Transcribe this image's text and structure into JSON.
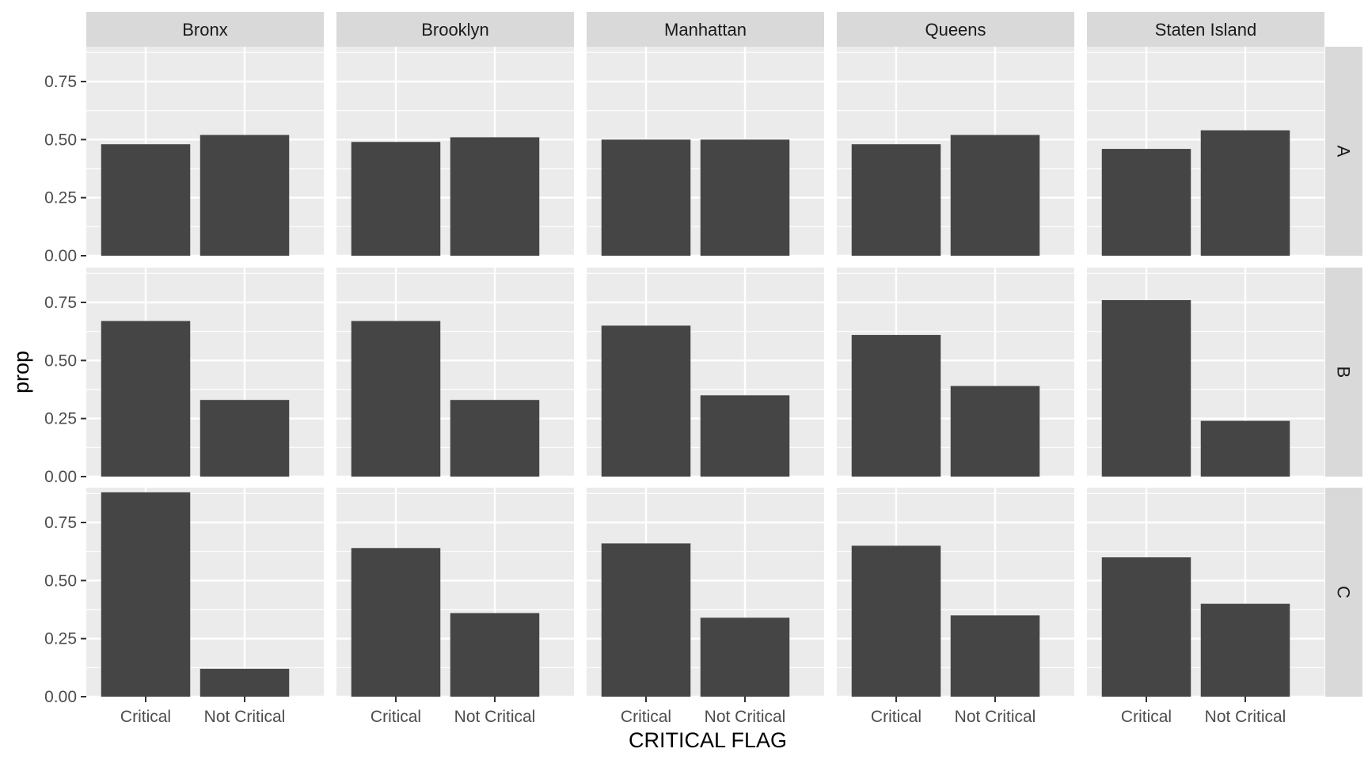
{
  "chart_data": {
    "type": "bar",
    "facet_cols": [
      "Bronx",
      "Brooklyn",
      "Manhattan",
      "Queens",
      "Staten Island"
    ],
    "facet_rows": [
      "A",
      "B",
      "C"
    ],
    "categories": [
      "Critical",
      "Not Critical"
    ],
    "xlabel": "CRITICAL FLAG",
    "ylabel": "prop",
    "ylim": [
      0,
      0.9
    ],
    "y_ticks": [
      0,
      0.25,
      0.5,
      0.75
    ],
    "y_tick_labels": [
      "0.00",
      "0.25",
      "0.50",
      "0.75"
    ],
    "grid": true,
    "bar_color": "#454545",
    "panel_background": "#ebebeb",
    "strip_background": "#d9d9d9",
    "panels": [
      {
        "col": "Bronx",
        "row": "A",
        "values": [
          0.48,
          0.52
        ]
      },
      {
        "col": "Brooklyn",
        "row": "A",
        "values": [
          0.49,
          0.51
        ]
      },
      {
        "col": "Manhattan",
        "row": "A",
        "values": [
          0.5,
          0.5
        ]
      },
      {
        "col": "Queens",
        "row": "A",
        "values": [
          0.48,
          0.52
        ]
      },
      {
        "col": "Staten Island",
        "row": "A",
        "values": [
          0.46,
          0.54
        ]
      },
      {
        "col": "Bronx",
        "row": "B",
        "values": [
          0.67,
          0.33
        ]
      },
      {
        "col": "Brooklyn",
        "row": "B",
        "values": [
          0.67,
          0.33
        ]
      },
      {
        "col": "Manhattan",
        "row": "B",
        "values": [
          0.65,
          0.35
        ]
      },
      {
        "col": "Queens",
        "row": "B",
        "values": [
          0.61,
          0.39
        ]
      },
      {
        "col": "Staten Island",
        "row": "B",
        "values": [
          0.76,
          0.24
        ]
      },
      {
        "col": "Bronx",
        "row": "C",
        "values": [
          0.88,
          0.12
        ]
      },
      {
        "col": "Brooklyn",
        "row": "C",
        "values": [
          0.64,
          0.36
        ]
      },
      {
        "col": "Manhattan",
        "row": "C",
        "values": [
          0.66,
          0.34
        ]
      },
      {
        "col": "Queens",
        "row": "C",
        "values": [
          0.65,
          0.35
        ]
      },
      {
        "col": "Staten Island",
        "row": "C",
        "values": [
          0.6,
          0.4
        ]
      }
    ]
  }
}
